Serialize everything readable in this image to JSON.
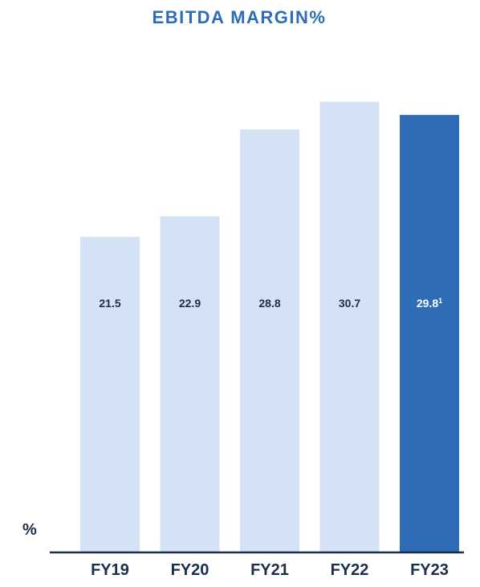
{
  "chart_data": {
    "type": "bar",
    "title": "EBITDA MARGIN%",
    "unit_label": "%",
    "categories": [
      "FY19",
      "FY20",
      "FY21",
      "FY22",
      "FY23"
    ],
    "values": [
      21.5,
      22.9,
      28.8,
      30.7,
      29.8
    ],
    "value_labels": [
      "21.5",
      "22.9",
      "28.8",
      "30.7",
      "29.8"
    ],
    "footnote_marks": [
      "",
      "",
      "",
      "",
      "1"
    ],
    "highlight_index": 4,
    "ylim": [
      0,
      31
    ],
    "grid": false,
    "legend": "none",
    "colors": {
      "bar": "#d3e2f4",
      "highlight_bar": "#2e6db5",
      "title": "#2e6db5",
      "value_text": "#1c2d4a",
      "highlight_value_text": "#ffffff",
      "axis_text": "#1c2d4a",
      "axis_line": "#1c2d4a"
    }
  }
}
